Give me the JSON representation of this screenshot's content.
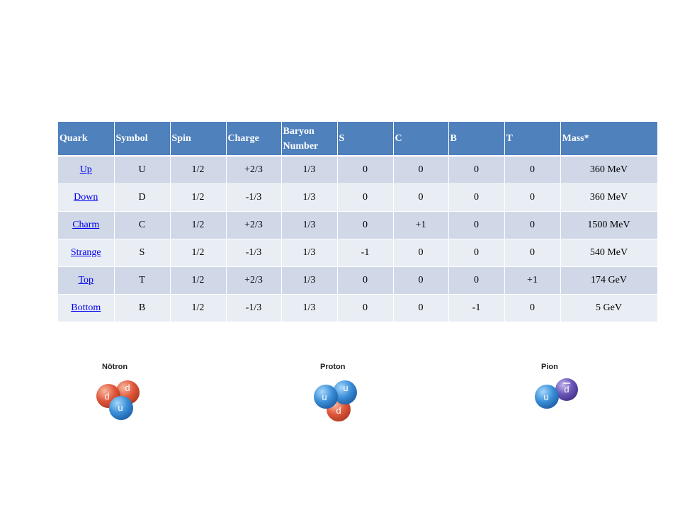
{
  "table": {
    "headers": [
      "Quark",
      "Symbol",
      "Spin",
      "Charge",
      "Baryon Number",
      "S",
      "C",
      "B",
      "T",
      "Mass*"
    ],
    "rows": [
      [
        "Up",
        "U",
        "1/2",
        "+2/3",
        "1/3",
        "0",
        "0",
        "0",
        "0",
        "360 MeV"
      ],
      [
        "Down",
        "D",
        "1/2",
        "-1/3",
        "1/3",
        "0",
        "0",
        "0",
        "0",
        "360 MeV"
      ],
      [
        "Charm",
        "C",
        "1/2",
        "+2/3",
        "1/3",
        "0",
        "+1",
        "0",
        "0",
        "1500 MeV"
      ],
      [
        "Strange",
        "S",
        "1/2",
        "-1/3",
        "1/3",
        "-1",
        "0",
        "0",
        "0",
        "540 MeV"
      ],
      [
        "Top",
        "T",
        "1/2",
        "+2/3",
        "1/3",
        "0",
        "0",
        "0",
        "+1",
        "174 GeV"
      ],
      [
        "Bottom",
        "B",
        "1/2",
        "-1/3",
        "1/3",
        "0",
        "0",
        "-1",
        "0",
        "5 GeV"
      ]
    ]
  },
  "particles": {
    "neutron": {
      "title": "Nötron",
      "q1": "d",
      "q2": "d",
      "q3": "u"
    },
    "proton": {
      "title": "Proton",
      "q1": "u",
      "q2": "u",
      "q3": "d"
    },
    "pion": {
      "title": "Pion",
      "q1": "u",
      "q2": "d"
    }
  },
  "colors": {
    "header_bg": "#4f81bd",
    "row_odd": "#d0d8e8",
    "row_even": "#e9edf4",
    "up_quark": "#3a8fd8",
    "down_quark": "#e0573a",
    "anti_down_quark": "#6a55b5"
  }
}
